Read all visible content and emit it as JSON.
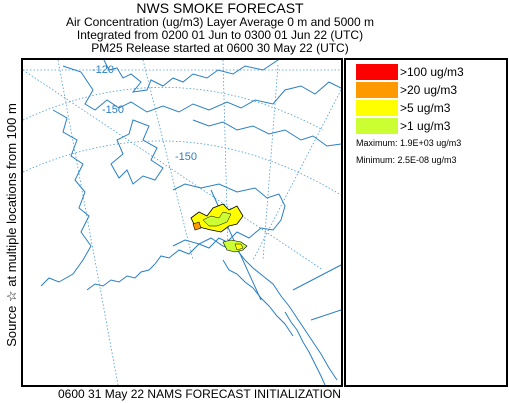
{
  "title": {
    "line1": "NWS SMOKE FORECAST",
    "line2": "Air Concentration (ug/m3) Layer Average    0 m and  5000 m",
    "line3": "Integrated from 0200 01 Jun to 0300 01 Jun 22 (UTC)",
    "line4": "PM25 Release started at 0600 30 May 22 (UTC)"
  },
  "side_label": "Source ☆   at multiple locations      from   100 m",
  "map": {
    "graticule_labels": [
      "-120",
      "-150",
      "-150"
    ]
  },
  "legend": {
    "items": [
      {
        "label": ">100 ug/m3",
        "color": "#ff0000"
      },
      {
        "label": ">20 ug/m3",
        "color": "#ff9900"
      },
      {
        "label": ">5 ug/m3",
        "color": "#ffff00"
      },
      {
        "label": ">1 ug/m3",
        "color": "#ccff33"
      }
    ],
    "maximum": "Maximum: 1.9E+03 ug/m3",
    "minimum": "Minimum: 2.5E-08 ug/m3"
  },
  "footer": "0600 31 May 22 NAMS FORECAST INITIALIZATION",
  "colors": {
    "coastline": "#2a7fc4",
    "graticule": "#4a9ad8",
    "border": "#2a7fc4"
  }
}
